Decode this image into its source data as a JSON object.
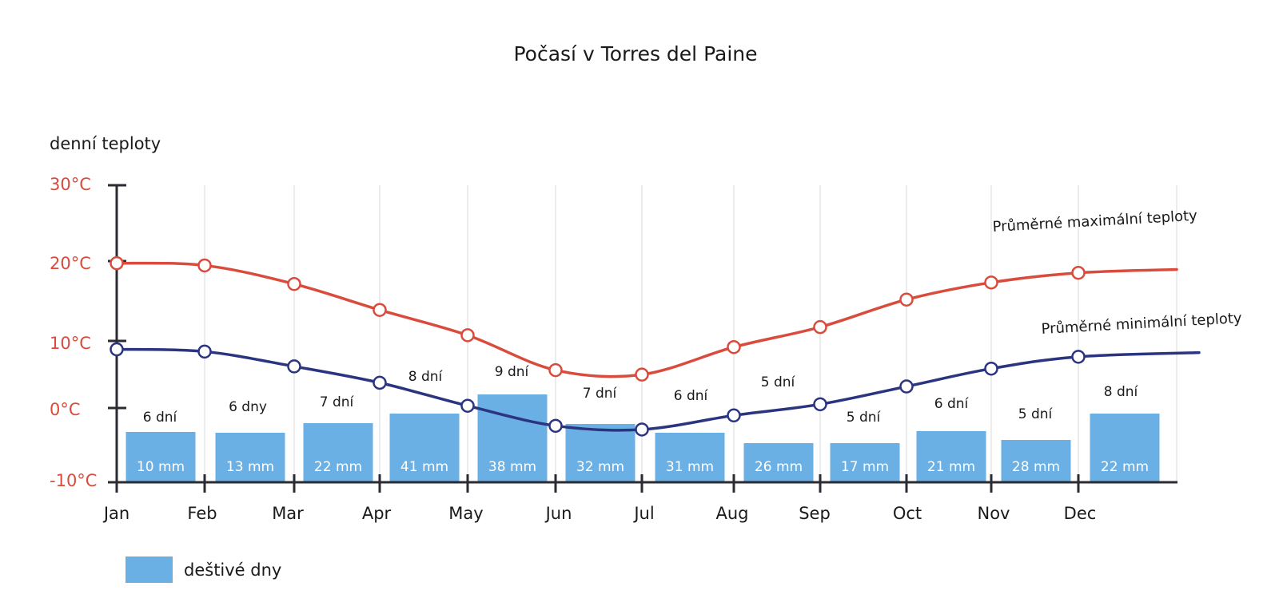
{
  "chart_data": {
    "type": "bar",
    "title": "Počasí v Torres del Paine",
    "ylabel": "denní teploty",
    "ylim": [
      -10,
      30
    ],
    "yticks": [
      "30°C",
      "20°C",
      "10°C",
      "0°C",
      "-10°C"
    ],
    "categories": [
      "Jan",
      "Feb",
      "Mar",
      "Apr",
      "May",
      "Jun",
      "Jul",
      "Aug",
      "Sep",
      "Oct",
      "Nov",
      "Dec"
    ],
    "rainy_days_labels": [
      "6 dní",
      "6 dny",
      "7 dní",
      "8 dní",
      "9 dní",
      "7 dní",
      "6 dní",
      "5 dní",
      "5 dní",
      "6 dní",
      "5 dní",
      "8 dní"
    ],
    "rainy_days": [
      6,
      6,
      7,
      8,
      9,
      7,
      6,
      5,
      5,
      6,
      5,
      8
    ],
    "precipitation_labels": [
      "10 mm",
      "13 mm",
      "22 mm",
      "41 mm",
      "38 mm",
      "32 mm",
      "31 mm",
      "26  mm",
      "17 mm",
      "21 mm",
      "28 mm",
      "22 mm"
    ],
    "series": [
      {
        "name": "Průměrné maximální teploty",
        "color": "#d94c3d",
        "values": [
          19.5,
          19.2,
          16.7,
          13.2,
          9.8,
          5.1,
          4.5,
          8.2,
          10.9,
          14.6,
          16.9,
          18.2
        ]
      },
      {
        "name": "Průměrné minimální teploty",
        "color": "#2b3480",
        "values": [
          7.9,
          7.6,
          5.6,
          3.4,
          0.3,
          -2.4,
          -2.9,
          -1.0,
          0.5,
          2.9,
          5.3,
          6.9
        ]
      }
    ],
    "bar_color": "#6ab0e4",
    "legend": {
      "label": "deštivé dny",
      "position": "bottom-left"
    }
  }
}
